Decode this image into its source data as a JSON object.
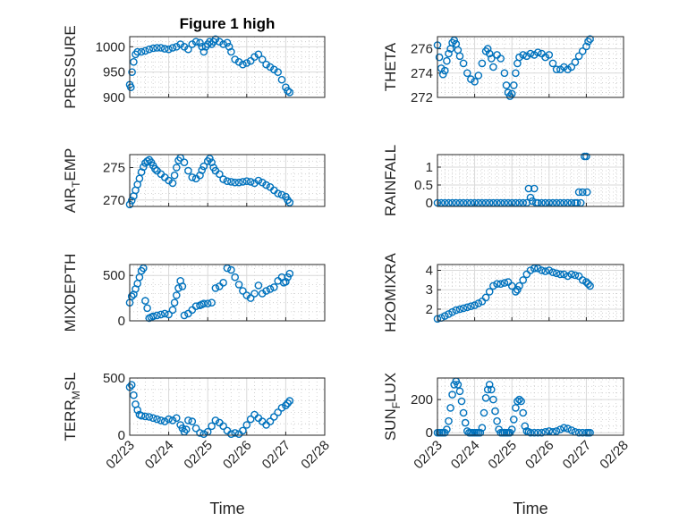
{
  "figure": {
    "title": "Figure 1 high",
    "marker_color": "#0072BD"
  },
  "chart_data": [
    {
      "type": "scatter",
      "title": "Figure 1 high",
      "ylabel": "PRESSURE",
      "xlabel": "",
      "ylim": [
        900,
        1020
      ],
      "yticks": [
        900,
        950,
        1000
      ],
      "ytick_labels": [
        "900",
        "950",
        "1000"
      ],
      "x_dates": [
        "02/23",
        "02/24",
        "02/25",
        "02/26",
        "02/27",
        "02/28"
      ],
      "xlim": [
        0,
        5
      ],
      "show_xticks": false,
      "x": [
        0.0,
        0.03,
        0.06,
        0.1,
        0.15,
        0.2,
        0.3,
        0.4,
        0.5,
        0.6,
        0.7,
        0.8,
        0.9,
        1.0,
        1.1,
        1.2,
        1.3,
        1.4,
        1.5,
        1.6,
        1.7,
        1.8,
        1.85,
        1.9,
        1.95,
        2.0,
        2.05,
        2.1,
        2.15,
        2.2,
        2.3,
        2.4,
        2.5,
        2.55,
        2.6,
        2.7,
        2.8,
        2.9,
        3.0,
        3.1,
        3.2,
        3.3,
        3.4,
        3.5,
        3.6,
        3.7,
        3.8,
        3.9,
        4.0,
        4.05,
        4.1
      ],
      "y": [
        925,
        920,
        950,
        970,
        985,
        990,
        990,
        992,
        995,
        997,
        998,
        998,
        996,
        995,
        998,
        1000,
        1005,
        1000,
        995,
        1005,
        1010,
        1008,
        1000,
        990,
        1000,
        1005,
        1010,
        1005,
        1010,
        1015,
        1010,
        1005,
        1008,
        1000,
        990,
        975,
        970,
        965,
        968,
        972,
        980,
        985,
        975,
        965,
        960,
        955,
        950,
        935,
        920,
        913,
        910
      ]
    },
    {
      "type": "scatter",
      "title": "",
      "ylabel": "THETA",
      "xlabel": "",
      "ylim": [
        272,
        277
      ],
      "yticks": [
        272,
        274,
        276
      ],
      "ytick_labels": [
        "272",
        "274",
        "276"
      ],
      "x_dates": [
        "02/23",
        "02/24",
        "02/25",
        "02/26",
        "02/27",
        "02/28"
      ],
      "xlim": [
        0,
        5
      ],
      "show_xticks": false,
      "x": [
        0.0,
        0.05,
        0.1,
        0.15,
        0.2,
        0.25,
        0.3,
        0.35,
        0.4,
        0.45,
        0.5,
        0.55,
        0.6,
        0.7,
        0.8,
        0.9,
        1.0,
        1.1,
        1.2,
        1.3,
        1.35,
        1.4,
        1.45,
        1.5,
        1.6,
        1.7,
        1.8,
        1.85,
        1.9,
        1.95,
        2.0,
        2.05,
        2.1,
        2.15,
        2.2,
        2.3,
        2.4,
        2.5,
        2.6,
        2.7,
        2.8,
        2.9,
        3.0,
        3.1,
        3.2,
        3.3,
        3.4,
        3.5,
        3.6,
        3.7,
        3.8,
        3.9,
        4.0,
        4.05,
        4.1
      ],
      "y": [
        276.3,
        275.3,
        274.4,
        273.9,
        274.2,
        275.0,
        275.6,
        276.0,
        276.5,
        276.7,
        276.4,
        275.9,
        275.4,
        274.8,
        274.0,
        273.5,
        273.3,
        273.8,
        274.8,
        275.8,
        276.0,
        275.6,
        275.2,
        274.5,
        275.5,
        275.2,
        274.0,
        273.0,
        272.4,
        272.1,
        272.3,
        273.0,
        274.0,
        274.8,
        275.3,
        275.5,
        275.4,
        275.6,
        275.5,
        275.7,
        275.6,
        275.3,
        275.5,
        274.8,
        274.3,
        274.3,
        274.5,
        274.3,
        274.5,
        274.9,
        275.4,
        275.8,
        276.2,
        276.6,
        276.8
      ]
    },
    {
      "type": "scatter",
      "title": "",
      "ylabel": "AIR_TEMP",
      "ylabel_parts": [
        "AIR",
        "T",
        "EMP"
      ],
      "xlabel": "",
      "ylim": [
        269,
        277
      ],
      "yticks": [
        270,
        275
      ],
      "ytick_labels": [
        "270",
        "275"
      ],
      "x_dates": [
        "02/23",
        "02/24",
        "02/25",
        "02/26",
        "02/27",
        "02/28"
      ],
      "xlim": [
        0,
        5
      ],
      "show_xticks": false,
      "x": [
        0.0,
        0.05,
        0.1,
        0.15,
        0.2,
        0.25,
        0.3,
        0.35,
        0.4,
        0.45,
        0.5,
        0.55,
        0.6,
        0.65,
        0.7,
        0.8,
        0.9,
        1.0,
        1.1,
        1.15,
        1.2,
        1.25,
        1.3,
        1.4,
        1.5,
        1.6,
        1.7,
        1.8,
        1.85,
        1.9,
        2.0,
        2.05,
        2.1,
        2.15,
        2.2,
        2.3,
        2.4,
        2.5,
        2.6,
        2.7,
        2.8,
        2.9,
        3.0,
        3.1,
        3.2,
        3.3,
        3.4,
        3.5,
        3.6,
        3.7,
        3.8,
        3.9,
        4.0,
        4.05,
        4.1
      ],
      "y": [
        269.3,
        269.9,
        270.6,
        271.5,
        272.4,
        273.3,
        274.3,
        275.1,
        275.7,
        276.0,
        276.2,
        275.8,
        275.3,
        274.8,
        274.5,
        274.0,
        273.5,
        273.0,
        272.6,
        273.8,
        275.0,
        276.1,
        276.5,
        275.8,
        274.5,
        273.5,
        273.3,
        273.8,
        274.6,
        275.2,
        276.0,
        276.4,
        275.8,
        275.0,
        274.5,
        274.0,
        273.2,
        272.9,
        272.8,
        272.7,
        272.7,
        272.8,
        272.9,
        272.8,
        272.6,
        273.0,
        272.7,
        272.3,
        272.0,
        271.5,
        271.0,
        270.8,
        270.5,
        270.0,
        269.6
      ]
    },
    {
      "type": "scatter",
      "title": "",
      "ylabel": "RAINFALL",
      "xlabel": "",
      "ylim": [
        -0.1,
        1.35
      ],
      "yticks": [
        0,
        0.5,
        1
      ],
      "ytick_labels": [
        "0",
        "0.5",
        "1"
      ],
      "x_dates": [
        "02/23",
        "02/24",
        "02/25",
        "02/26",
        "02/27",
        "02/28"
      ],
      "xlim": [
        0,
        5
      ],
      "show_xticks": false,
      "x": [
        0.0,
        0.1,
        0.2,
        0.3,
        0.4,
        0.5,
        0.6,
        0.7,
        0.8,
        0.9,
        1.0,
        1.1,
        1.2,
        1.3,
        1.4,
        1.5,
        1.6,
        1.7,
        1.8,
        1.9,
        2.0,
        2.1,
        2.2,
        2.3,
        2.4,
        2.45,
        2.5,
        2.55,
        2.6,
        2.65,
        2.7,
        2.8,
        2.9,
        3.0,
        3.1,
        3.2,
        3.3,
        3.4,
        3.5,
        3.6,
        3.7,
        3.75,
        3.8,
        3.85,
        3.9,
        3.95,
        4.0,
        4.02
      ],
      "y": [
        0,
        0,
        0,
        0,
        0,
        0,
        0,
        0,
        0,
        0,
        0,
        0,
        0,
        0,
        0,
        0,
        0,
        0,
        0,
        0,
        0,
        0,
        0,
        0,
        0,
        0.4,
        0.15,
        0.05,
        0.4,
        0,
        0,
        0,
        0,
        0,
        0,
        0,
        0,
        0,
        0,
        0,
        0,
        0,
        0.3,
        0,
        0.3,
        1.3,
        1.3,
        0.3
      ]
    },
    {
      "type": "scatter",
      "title": "",
      "ylabel": "MIXDEPTH",
      "xlabel": "",
      "ylim": [
        0,
        620
      ],
      "yticks": [
        0,
        500
      ],
      "ytick_labels": [
        "0",
        "500"
      ],
      "x_dates": [
        "02/23",
        "02/24",
        "02/25",
        "02/26",
        "02/27",
        "02/28"
      ],
      "xlim": [
        0,
        5
      ],
      "show_xticks": false,
      "x": [
        0.0,
        0.05,
        0.1,
        0.15,
        0.2,
        0.25,
        0.3,
        0.35,
        0.4,
        0.45,
        0.5,
        0.55,
        0.6,
        0.7,
        0.8,
        0.9,
        1.0,
        1.1,
        1.15,
        1.2,
        1.25,
        1.3,
        1.35,
        1.4,
        1.5,
        1.6,
        1.7,
        1.8,
        1.85,
        1.9,
        2.0,
        2.1,
        2.2,
        2.3,
        2.4,
        2.5,
        2.6,
        2.7,
        2.8,
        2.9,
        3.0,
        3.1,
        3.2,
        3.3,
        3.4,
        3.5,
        3.6,
        3.7,
        3.8,
        3.9,
        3.95,
        4.0,
        4.05,
        4.1
      ],
      "y": [
        200,
        270,
        290,
        350,
        410,
        480,
        550,
        580,
        220,
        140,
        30,
        40,
        50,
        60,
        70,
        80,
        70,
        120,
        200,
        280,
        360,
        440,
        380,
        60,
        80,
        120,
        160,
        170,
        180,
        190,
        190,
        200,
        360,
        380,
        420,
        580,
        560,
        480,
        400,
        330,
        280,
        250,
        300,
        390,
        300,
        330,
        350,
        370,
        440,
        480,
        420,
        430,
        480,
        520
      ]
    },
    {
      "type": "scatter",
      "title": "",
      "ylabel": "H2OMIXRA",
      "xlabel": "",
      "ylim": [
        1.4,
        4.3
      ],
      "yticks": [
        2,
        3,
        4
      ],
      "ytick_labels": [
        "2",
        "3",
        "4"
      ],
      "x_dates": [
        "02/23",
        "02/24",
        "02/25",
        "02/26",
        "02/27",
        "02/28"
      ],
      "xlim": [
        0,
        5
      ],
      "show_xticks": false,
      "x": [
        0.0,
        0.1,
        0.2,
        0.3,
        0.4,
        0.5,
        0.6,
        0.7,
        0.8,
        0.9,
        1.0,
        1.1,
        1.2,
        1.3,
        1.4,
        1.5,
        1.6,
        1.7,
        1.8,
        1.9,
        2.0,
        2.1,
        2.15,
        2.2,
        2.3,
        2.4,
        2.5,
        2.6,
        2.7,
        2.8,
        2.9,
        3.0,
        3.1,
        3.2,
        3.3,
        3.4,
        3.5,
        3.6,
        3.7,
        3.8,
        3.9,
        4.0,
        4.05,
        4.1
      ],
      "y": [
        1.5,
        1.55,
        1.65,
        1.75,
        1.85,
        1.95,
        2.0,
        2.05,
        2.1,
        2.15,
        2.2,
        2.3,
        2.4,
        2.6,
        2.9,
        3.2,
        3.3,
        3.3,
        3.35,
        3.4,
        3.2,
        2.9,
        3.0,
        3.2,
        3.5,
        3.8,
        4.0,
        4.1,
        4.1,
        4.0,
        3.95,
        4.0,
        3.9,
        3.85,
        3.8,
        3.8,
        3.7,
        3.8,
        3.75,
        3.7,
        3.5,
        3.4,
        3.3,
        3.2
      ]
    },
    {
      "type": "scatter",
      "title": "",
      "ylabel": "TERR_MSL",
      "ylabel_parts": [
        "TERR",
        "M",
        "SL"
      ],
      "xlabel": "Time",
      "ylim": [
        0,
        500
      ],
      "yticks": [
        0,
        500
      ],
      "ytick_labels": [
        "0",
        "500"
      ],
      "x_dates": [
        "02/23",
        "02/24",
        "02/25",
        "02/26",
        "02/27",
        "02/28"
      ],
      "xlim": [
        0,
        5
      ],
      "show_xticks": true,
      "x": [
        0.0,
        0.05,
        0.1,
        0.15,
        0.2,
        0.25,
        0.3,
        0.4,
        0.5,
        0.6,
        0.7,
        0.8,
        0.9,
        1.0,
        1.1,
        1.2,
        1.3,
        1.35,
        1.4,
        1.45,
        1.5,
        1.6,
        1.7,
        1.8,
        1.9,
        2.0,
        2.1,
        2.2,
        2.3,
        2.4,
        2.5,
        2.6,
        2.7,
        2.8,
        2.9,
        3.0,
        3.1,
        3.2,
        3.3,
        3.4,
        3.5,
        3.6,
        3.7,
        3.8,
        3.9,
        4.0,
        4.05,
        4.1
      ],
      "y": [
        420,
        440,
        350,
        270,
        220,
        180,
        170,
        165,
        160,
        150,
        140,
        130,
        120,
        140,
        130,
        150,
        90,
        60,
        30,
        50,
        130,
        120,
        60,
        20,
        10,
        30,
        80,
        130,
        110,
        80,
        40,
        10,
        20,
        10,
        40,
        90,
        140,
        180,
        150,
        120,
        90,
        120,
        160,
        200,
        240,
        260,
        280,
        300
      ]
    },
    {
      "type": "scatter",
      "title": "",
      "ylabel": "SUN_FLUX",
      "ylabel_parts": [
        "SUN",
        "F",
        "LUX"
      ],
      "xlabel": "Time",
      "ylim": [
        -15,
        330
      ],
      "yticks": [
        0,
        200
      ],
      "ytick_labels": [
        "0",
        "200"
      ],
      "x_dates": [
        "02/23",
        "02/24",
        "02/25",
        "02/26",
        "02/27",
        "02/28"
      ],
      "xlim": [
        0,
        5
      ],
      "show_xticks": true,
      "x": [
        0.0,
        0.05,
        0.1,
        0.15,
        0.2,
        0.25,
        0.3,
        0.35,
        0.4,
        0.45,
        0.5,
        0.55,
        0.6,
        0.65,
        0.7,
        0.75,
        0.8,
        0.85,
        0.9,
        0.95,
        1.0,
        1.05,
        1.1,
        1.15,
        1.2,
        1.25,
        1.3,
        1.35,
        1.4,
        1.45,
        1.5,
        1.55,
        1.6,
        1.65,
        1.7,
        1.75,
        1.8,
        1.85,
        1.9,
        1.95,
        2.0,
        2.05,
        2.1,
        2.15,
        2.2,
        2.25,
        2.3,
        2.35,
        2.4,
        2.45,
        2.5,
        2.6,
        2.7,
        2.8,
        2.9,
        3.0,
        3.1,
        3.2,
        3.3,
        3.4,
        3.5,
        3.6,
        3.7,
        3.8,
        3.9,
        4.0,
        4.05,
        4.1
      ],
      "y": [
        0,
        0,
        0,
        0,
        0,
        20,
        70,
        150,
        230,
        290,
        310,
        290,
        250,
        190,
        120,
        60,
        10,
        0,
        0,
        0,
        0,
        0,
        0,
        0,
        30,
        120,
        210,
        260,
        290,
        260,
        200,
        130,
        70,
        20,
        0,
        0,
        0,
        0,
        0,
        0,
        20,
        80,
        150,
        190,
        200,
        190,
        120,
        40,
        10,
        5,
        0,
        0,
        0,
        0,
        5,
        10,
        5,
        10,
        20,
        30,
        25,
        15,
        5,
        0,
        0,
        0,
        0,
        0
      ]
    }
  ]
}
